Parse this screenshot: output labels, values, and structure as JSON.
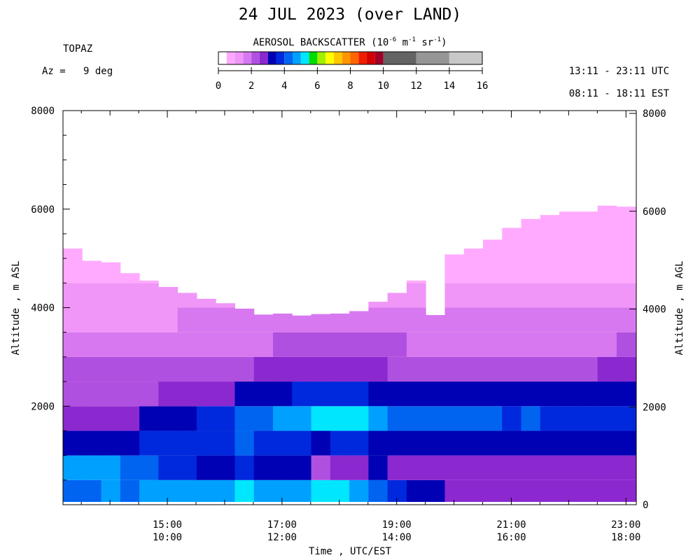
{
  "title": "24 JUL 2023 (over LAND)",
  "station": "TOPAZ",
  "azimuth": "Az =   9 deg",
  "time_ranges": {
    "utc": "13:11 - 23:11 UTC",
    "est": "08:11 - 18:11 EST"
  },
  "colorbar": {
    "title_prefix": "AEROSOL BACKSCATTER (10",
    "exp1": "-6",
    "mid1": " m",
    "exp2": "-1",
    "mid2": " sr",
    "exp3": "-1",
    "title_suffix": ")",
    "min": 0,
    "max": 16,
    "tick_labels": [
      "0",
      "2",
      "4",
      "6",
      "8",
      "10",
      "12",
      "14",
      "16"
    ],
    "bins": [
      {
        "lo": 0,
        "hi": 0.5,
        "color": "#ffffff"
      },
      {
        "lo": 0.5,
        "hi": 1,
        "color": "#ffaaff"
      },
      {
        "lo": 1,
        "hi": 1.5,
        "color": "#f096f8"
      },
      {
        "lo": 1.5,
        "hi": 2,
        "color": "#d878f0"
      },
      {
        "lo": 2,
        "hi": 2.5,
        "color": "#b050e0"
      },
      {
        "lo": 2.5,
        "hi": 3,
        "color": "#8c28d0"
      },
      {
        "lo": 3,
        "hi": 3.5,
        "color": "#0000b4"
      },
      {
        "lo": 3.5,
        "hi": 4,
        "color": "#0028dc"
      },
      {
        "lo": 4,
        "hi": 4.5,
        "color": "#0064f0"
      },
      {
        "lo": 4.5,
        "hi": 5,
        "color": "#00a0ff"
      },
      {
        "lo": 5,
        "hi": 5.5,
        "color": "#00e6ff"
      },
      {
        "lo": 5.5,
        "hi": 6,
        "color": "#00dc00"
      },
      {
        "lo": 6,
        "hi": 6.5,
        "color": "#a0f000"
      },
      {
        "lo": 6.5,
        "hi": 7,
        "color": "#ffff00"
      },
      {
        "lo": 7,
        "hi": 7.5,
        "color": "#ffc800"
      },
      {
        "lo": 7.5,
        "hi": 8,
        "color": "#ff9600"
      },
      {
        "lo": 8,
        "hi": 8.5,
        "color": "#ff6400"
      },
      {
        "lo": 8.5,
        "hi": 9,
        "color": "#f01e00"
      },
      {
        "lo": 9,
        "hi": 9.5,
        "color": "#d20000"
      },
      {
        "lo": 9.5,
        "hi": 10,
        "color": "#a00028"
      },
      {
        "lo": 10,
        "hi": 12,
        "color": "#646464"
      },
      {
        "lo": 12,
        "hi": 14,
        "color": "#969696"
      },
      {
        "lo": 14,
        "hi": 16,
        "color": "#c8c8c8"
      }
    ]
  },
  "chart_data": {
    "type": "heatmap",
    "title": "24 JUL 2023 (over LAND)",
    "xlabel": "Time , UTC/EST",
    "ylabel_left": "Altitude , m ASL",
    "ylabel_right": "Altitude , m AGL",
    "xlim_utc_hours": [
      13.18,
      23.18
    ],
    "ylim_left": [
      0,
      8000
    ],
    "left_ticks": [
      8000,
      6000,
      4000,
      2000
    ],
    "right_ticks": [
      8000,
      6000,
      4000,
      2000,
      0
    ],
    "x_ticks": [
      {
        "utc_hours": 15,
        "utc": "15:00",
        "est": "10:00"
      },
      {
        "utc_hours": 17,
        "utc": "17:00",
        "est": "12:00"
      },
      {
        "utc_hours": 19,
        "utc": "19:00",
        "est": "14:00"
      },
      {
        "utc_hours": 21,
        "utc": "21:00",
        "est": "16:00"
      },
      {
        "utc_hours": 23,
        "utc": "23:00",
        "est": "18:00"
      }
    ],
    "profile_start_utc_hours": 13.18,
    "profile_step_hours": 0.333,
    "altitude_base_m": 0,
    "altitude_bands_m": [
      0,
      500,
      1000,
      1500,
      2000,
      2500,
      3000,
      3500,
      4000,
      4500
    ],
    "top_of_signal_m": [
      5200,
      4950,
      4920,
      4700,
      4550,
      4420,
      4300,
      4180,
      4090,
      3980,
      3860,
      3880,
      3840,
      3870,
      3880,
      3930,
      4120,
      4300,
      4550,
      3850,
      5080,
      5200,
      5380,
      5620,
      5800,
      5880,
      5950,
      5950,
      6070,
      6050
    ],
    "profiles": [
      [
        4.3,
        4.6,
        3.2,
        2.6,
        2.3,
        2.0,
        1.6,
        1.3,
        1.0,
        0.8
      ],
      [
        4.4,
        4.5,
        3.3,
        2.6,
        2.3,
        2.0,
        1.7,
        1.3,
        1.0,
        0.8
      ],
      [
        4.6,
        4.5,
        3.4,
        2.7,
        2.3,
        2.1,
        1.7,
        1.4,
        1.1,
        0.8
      ],
      [
        4.4,
        4.3,
        3.3,
        2.8,
        2.4,
        2.1,
        1.7,
        1.4,
        1.1,
        0.8
      ],
      [
        4.5,
        4.0,
        3.5,
        3.0,
        2.4,
        2.1,
        1.8,
        1.4,
        1.1,
        0.9
      ],
      [
        4.6,
        3.8,
        3.6,
        3.2,
        2.5,
        2.1,
        1.8,
        1.4,
        1.1,
        0.9
      ],
      [
        4.7,
        3.6,
        3.7,
        3.4,
        2.6,
        2.2,
        1.8,
        1.5,
        1.2,
        0.9
      ],
      [
        4.7,
        3.3,
        3.8,
        3.6,
        2.7,
        2.2,
        1.8,
        1.5,
        1.2,
        0.9
      ],
      [
        4.8,
        3.2,
        3.6,
        3.8,
        2.8,
        2.3,
        1.8,
        1.5,
        1.2,
        0.9
      ],
      [
        5.0,
        3.5,
        4.0,
        4.4,
        3.0,
        2.4,
        1.9,
        1.5,
        1.2,
        0.9
      ],
      [
        4.9,
        3.4,
        3.9,
        4.3,
        3.2,
        2.5,
        1.9,
        1.6,
        1.3,
        1.0
      ],
      [
        4.6,
        3.2,
        3.6,
        4.7,
        3.3,
        2.6,
        2.0,
        1.6,
        1.3,
        1.0
      ],
      [
        4.8,
        3.0,
        3.6,
        4.9,
        3.5,
        2.7,
        2.0,
        1.7,
        1.3,
        1.0
      ],
      [
        5.1,
        2.4,
        3.3,
        5.4,
        3.6,
        2.7,
        2.1,
        1.7,
        1.3,
        1.0
      ],
      [
        5.0,
        2.6,
        3.5,
        5.0,
        3.6,
        2.6,
        2.1,
        1.7,
        1.3,
        1.0
      ],
      [
        4.7,
        2.8,
        3.5,
        5.2,
        3.5,
        2.6,
        2.0,
        1.7,
        1.3,
        1.0
      ],
      [
        4.4,
        3.0,
        3.3,
        4.6,
        3.3,
        2.5,
        2.0,
        1.6,
        1.2,
        1.0
      ],
      [
        3.9,
        2.8,
        3.1,
        4.2,
        3.2,
        2.4,
        2.0,
        1.6,
        1.2,
        0.9
      ],
      [
        3.4,
        2.8,
        3.0,
        4.3,
        3.1,
        2.4,
        1.9,
        1.6,
        1.2,
        0.9
      ],
      [
        3.0,
        2.6,
        3.2,
        4.2,
        3.0,
        2.3,
        1.9,
        1.5,
        1.2,
        0.9
      ],
      [
        2.7,
        2.6,
        3.1,
        4.1,
        3.0,
        2.3,
        1.8,
        1.5,
        1.1,
        0.9
      ],
      [
        2.8,
        2.6,
        3.0,
        4.2,
        3.1,
        2.3,
        1.8,
        1.5,
        1.1,
        0.9
      ],
      [
        2.7,
        2.7,
        3.2,
        4.0,
        3.1,
        2.4,
        1.9,
        1.5,
        1.2,
        0.9
      ],
      [
        2.7,
        2.7,
        3.2,
        3.8,
        3.1,
        2.4,
        1.9,
        1.5,
        1.2,
        0.9
      ],
      [
        2.6,
        2.6,
        3.3,
        4.0,
        3.0,
        2.4,
        1.9,
        1.6,
        1.2,
        0.9
      ],
      [
        2.5,
        2.6,
        3.4,
        3.7,
        3.1,
        2.4,
        1.9,
        1.6,
        1.2,
        0.9
      ],
      [
        2.6,
        2.7,
        3.2,
        3.7,
        3.0,
        2.4,
        1.9,
        1.5,
        1.2,
        0.9
      ],
      [
        2.5,
        2.6,
        3.1,
        3.9,
        3.0,
        2.4,
        1.9,
        1.5,
        1.2,
        0.9
      ],
      [
        2.6,
        2.7,
        3.1,
        3.8,
        3.0,
        2.5,
        1.9,
        1.6,
        1.2,
        0.9
      ],
      [
        2.6,
        2.8,
        3.1,
        3.9,
        3.1,
        2.5,
        2.0,
        1.6,
        1.2,
        0.9
      ]
    ]
  }
}
